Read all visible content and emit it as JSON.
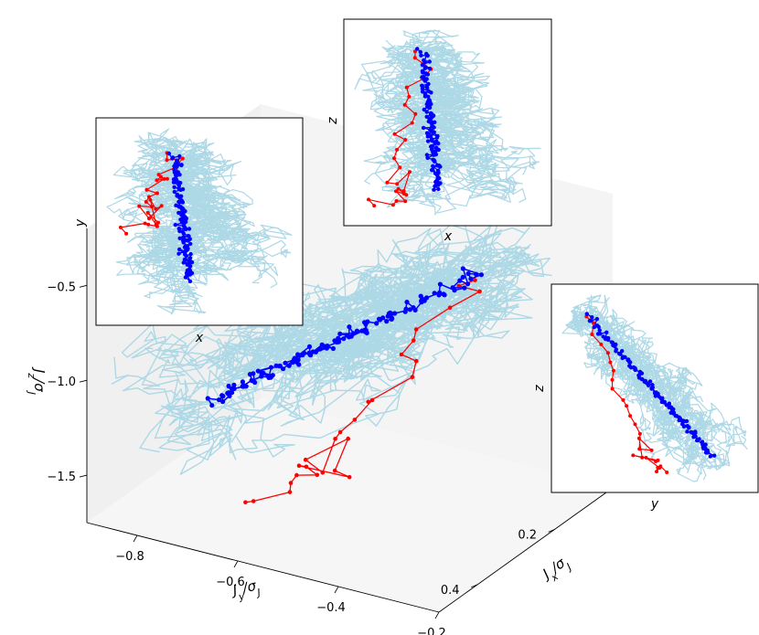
{
  "chart_data": {
    "type": "line",
    "projection": "3d",
    "title": "",
    "axes": {
      "x": {
        "label": "J_y/σ_J",
        "ticks": [
          -0.8,
          -0.6,
          -0.4,
          -0.2
        ],
        "range": [
          -0.9,
          -0.2
        ]
      },
      "y": {
        "label": "J_x/σ_J",
        "ticks": [
          0.2,
          0.4
        ],
        "range": [
          0.05,
          0.5
        ]
      },
      "z": {
        "label": "J_z/σ_J",
        "ticks": [
          -0.5,
          -1.0,
          -1.5
        ],
        "range": [
          -1.75,
          -0.2
        ]
      }
    },
    "grid": false,
    "legend": "none",
    "series": [
      {
        "role": "ensemble",
        "color": "#add8e6",
        "count": 18
      },
      {
        "role": "mean",
        "color": "#0000ff",
        "marker": "circle"
      },
      {
        "role": "single",
        "color": "#ff0000",
        "marker": "circle"
      }
    ],
    "insets": [
      {
        "id": "xy",
        "xlabel": "x",
        "ylabel": "y"
      },
      {
        "id": "xz",
        "xlabel": "x",
        "ylabel": "z"
      },
      {
        "id": "yz",
        "xlabel": "y",
        "ylabel": "z"
      }
    ]
  },
  "colors": {
    "ensemble": "#add8e6",
    "mean": "#0000ff",
    "single": "#ff0000",
    "pane_left": "#f0f0f0",
    "pane_back": "#f4f4f4",
    "pane_floor": "#f6f6f6"
  }
}
